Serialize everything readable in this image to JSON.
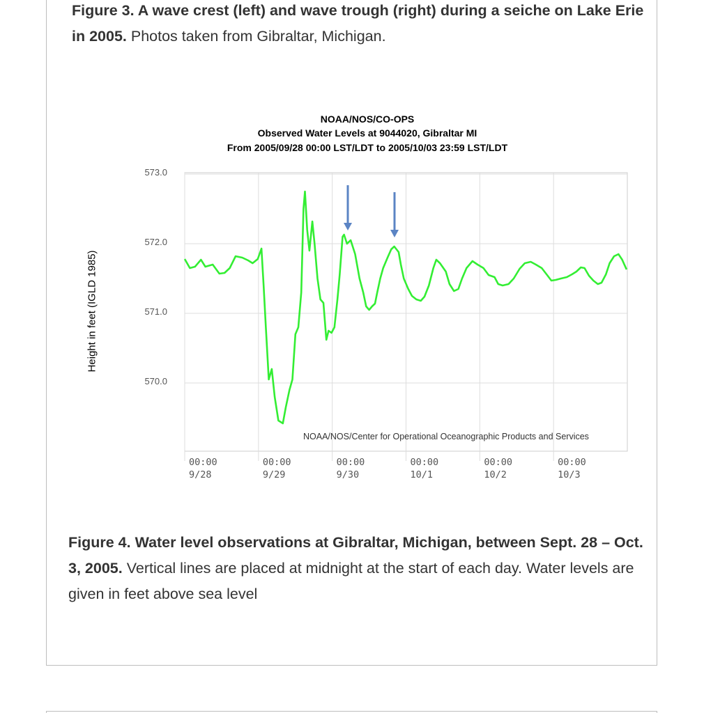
{
  "captions": [
    {
      "bold": "Figure 3.  A wave crest (left) and wave trough (right) during a seiche on Lake Erie in 2005.",
      "text": "Photos taken from Gibraltar, Michigan."
    },
    {
      "bold": "Figure 4. Water level observations at Gibraltar, Michigan, between Sept. 28 – Oct. 3, 2005.",
      "text": "Vertical lines are placed at midnight at the start of each day.  Water levels are given in feet above sea level"
    }
  ],
  "chart_data": {
    "type": "line",
    "title": "NOAA/NOS/CO-OPS",
    "subtitle": "Observed Water Levels at 9044020, Gibraltar MI",
    "subtitle2": "From 2005/09/28 00:00 LST/LDT to 2005/10/03 23:59 LST/LDT",
    "ylabel": "Height in feet (IGLD 1985)",
    "annotation": "NOAA/NOS/Center for Operational Oceanographic Products and Services",
    "xlim": [
      0,
      6
    ],
    "ylim": [
      569,
      573
    ],
    "xticks": [
      {
        "value": 0,
        "label": "00:00\n9/28"
      },
      {
        "value": 1,
        "label": "00:00\n9/29"
      },
      {
        "value": 2,
        "label": "00:00\n9/30"
      },
      {
        "value": 3,
        "label": "00:00\n10/1"
      },
      {
        "value": 4,
        "label": "00:00\n10/2"
      },
      {
        "value": 5,
        "label": "00:00\n10/3"
      }
    ],
    "yticks": [
      {
        "value": 573,
        "label": "573.0"
      },
      {
        "value": 572,
        "label": "572.0"
      },
      {
        "value": 571,
        "label": "571.0"
      },
      {
        "value": 570,
        "label": "570.0"
      }
    ],
    "grid": true,
    "series": [
      {
        "color": "#33ee33",
        "x": [
          0,
          0.07,
          0.14,
          0.22,
          0.28,
          0.38,
          0.47,
          0.54,
          0.61,
          0.69,
          0.78,
          0.86,
          0.92,
          0.99,
          1.04,
          1.07,
          1.1,
          1.14,
          1.18,
          1.22,
          1.27,
          1.33,
          1.37,
          1.42,
          1.46,
          1.5,
          1.54,
          1.58,
          1.61,
          1.63,
          1.66,
          1.69,
          1.73,
          1.76,
          1.8,
          1.84,
          1.88,
          1.92,
          1.95,
          1.99,
          2.03,
          2.07,
          2.1,
          2.14,
          2.16,
          2.2,
          2.25,
          2.31,
          2.37,
          2.42,
          2.46,
          2.5,
          2.54,
          2.58,
          2.61,
          2.65,
          2.69,
          2.75,
          2.8,
          2.84,
          2.9,
          2.93,
          2.97,
          3.03,
          3.08,
          3.14,
          3.2,
          3.25,
          3.31,
          3.37,
          3.41,
          3.46,
          3.54,
          3.59,
          3.65,
          3.71,
          3.76,
          3.82,
          3.9,
          3.97,
          4.05,
          4.12,
          4.2,
          4.25,
          4.31,
          4.39,
          4.46,
          4.54,
          4.61,
          4.69,
          4.76,
          4.84,
          4.92,
          4.97,
          5.03,
          5.1,
          5.18,
          5.25,
          5.31,
          5.37,
          5.42,
          5.48,
          5.54,
          5.6,
          5.65,
          5.71,
          5.76,
          5.82,
          5.88,
          5.93,
          5.99
        ],
        "values": [
          571.78,
          571.65,
          571.67,
          571.77,
          571.67,
          571.7,
          571.57,
          571.58,
          571.65,
          571.82,
          571.8,
          571.76,
          571.72,
          571.78,
          571.93,
          571.4,
          570.8,
          570.05,
          570.2,
          569.8,
          569.46,
          569.42,
          569.65,
          569.9,
          570.05,
          570.7,
          570.8,
          571.3,
          572.5,
          572.75,
          572.2,
          571.9,
          572.32,
          572.0,
          571.5,
          571.2,
          571.15,
          570.62,
          570.75,
          570.72,
          570.8,
          571.2,
          571.55,
          572.1,
          572.13,
          572.0,
          572.05,
          571.85,
          571.5,
          571.3,
          571.1,
          571.05,
          571.1,
          571.14,
          571.3,
          571.5,
          571.65,
          571.8,
          571.92,
          571.96,
          571.88,
          571.7,
          571.5,
          571.35,
          571.25,
          571.2,
          571.18,
          571.24,
          571.4,
          571.65,
          571.77,
          571.72,
          571.6,
          571.42,
          571.32,
          571.35,
          571.5,
          571.65,
          571.75,
          571.7,
          571.65,
          571.55,
          571.52,
          571.42,
          571.4,
          571.42,
          571.5,
          571.64,
          571.72,
          571.74,
          571.7,
          571.65,
          571.54,
          571.47,
          571.48,
          571.5,
          571.52,
          571.56,
          571.6,
          571.66,
          571.65,
          571.54,
          571.47,
          571.42,
          571.44,
          571.56,
          571.72,
          571.82,
          571.85,
          571.77,
          571.63
        ]
      }
    ]
  }
}
